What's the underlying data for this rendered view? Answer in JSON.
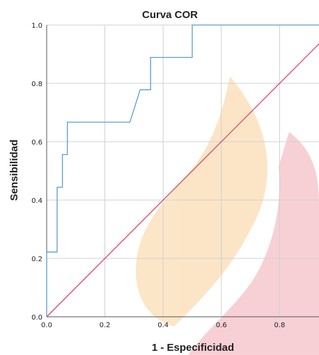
{
  "chart_data": {
    "type": "line",
    "title": "Curva COR",
    "xlabel": "1 - Especificidad",
    "ylabel": "Sensibilidad",
    "xlim": [
      0,
      0.95
    ],
    "ylim": [
      0,
      1.0
    ],
    "x_ticks": [
      "0.0",
      "0.2",
      "0.4",
      "0.6",
      "0.8"
    ],
    "y_ticks": [
      "0.0",
      "0.2",
      "0.4",
      "0.6",
      "0.8",
      "1.0"
    ],
    "grid": true,
    "legend": "none",
    "series": [
      {
        "color": "#5b9bd5",
        "points": [
          [
            0.0,
            0.0
          ],
          [
            0.0,
            0.222
          ],
          [
            0.036,
            0.222
          ],
          [
            0.036,
            0.444
          ],
          [
            0.054,
            0.444
          ],
          [
            0.054,
            0.556
          ],
          [
            0.071,
            0.556
          ],
          [
            0.071,
            0.667
          ],
          [
            0.286,
            0.667
          ],
          [
            0.321,
            0.778
          ],
          [
            0.357,
            0.778
          ],
          [
            0.357,
            0.889
          ],
          [
            0.5,
            0.889
          ],
          [
            0.5,
            1.0
          ],
          [
            0.95,
            1.0
          ]
        ]
      },
      {
        "color": "#d9475e",
        "points": [
          [
            0.0,
            0.0
          ],
          [
            0.95,
            0.95
          ]
        ]
      }
    ]
  }
}
